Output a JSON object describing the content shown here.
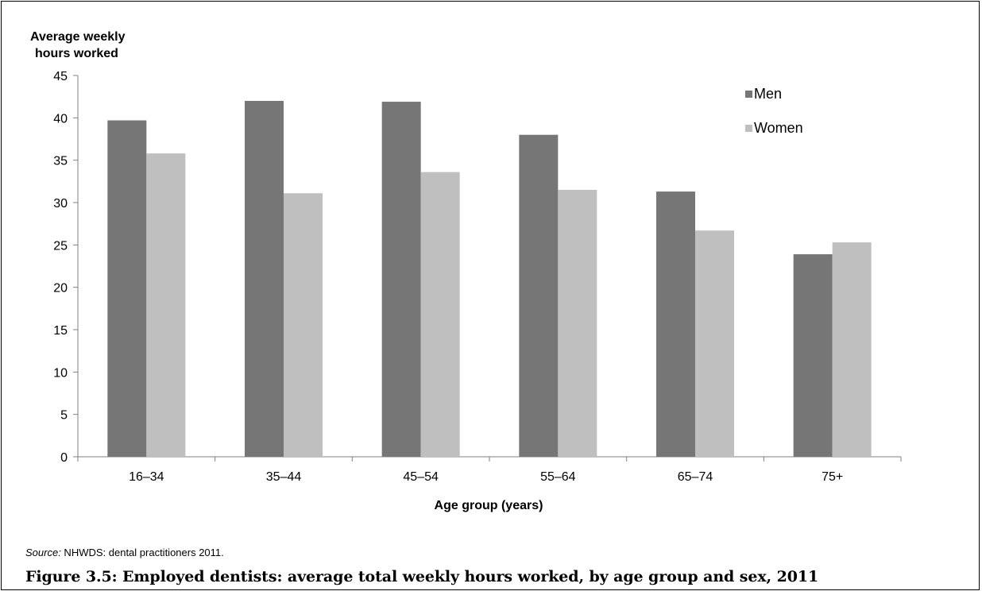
{
  "chart_data": {
    "type": "bar",
    "ylabel_line1": "Average weekly",
    "ylabel_line2": "hours worked",
    "xlabel": "Age group (years)",
    "categories": [
      "16–34",
      "35–44",
      "45–54",
      "55–64",
      "65–74",
      "75+"
    ],
    "ylim": [
      0,
      45
    ],
    "yticks": [
      0,
      5,
      10,
      15,
      20,
      25,
      30,
      35,
      40,
      45
    ],
    "grid": false,
    "legend_position": "top-right",
    "series": [
      {
        "name": "Men",
        "color": "#767676",
        "values": [
          39.7,
          42.0,
          41.9,
          38.0,
          31.3,
          23.9
        ]
      },
      {
        "name": "Women",
        "color": "#bfbfbf",
        "values": [
          35.8,
          31.1,
          33.6,
          31.5,
          26.7,
          25.3
        ]
      }
    ]
  },
  "source": {
    "label": "Source:",
    "text": " NHWDS: dental practitioners 2011."
  },
  "caption": "Figure 3.5: Employed dentists: average total weekly hours worked, by age group and sex, 2011"
}
